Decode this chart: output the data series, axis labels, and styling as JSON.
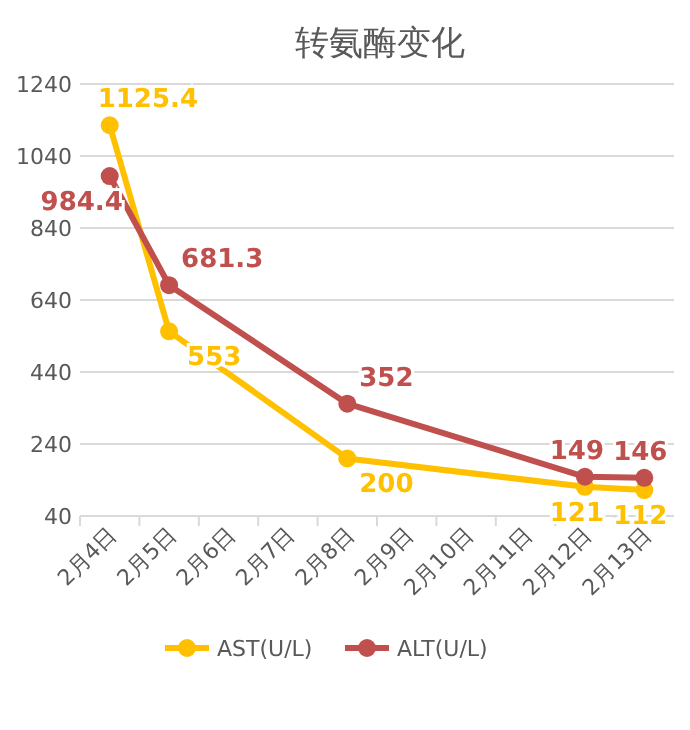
{
  "chart_data": {
    "type": "line",
    "title": "转氨酶变化",
    "categories": [
      "2月4日",
      "2月5日",
      "2月6日",
      "2月7日",
      "2月8日",
      "2月9日",
      "2月10日",
      "2月11日",
      "2月12日",
      "2月13日"
    ],
    "series": [
      {
        "name": "AST(U/L)",
        "color": "#ffc000",
        "values": [
          1125.4,
          553,
          null,
          null,
          200,
          null,
          null,
          null,
          121,
          112
        ]
      },
      {
        "name": "ALT(U/L)",
        "color": "#c0504d",
        "values": [
          984.4,
          681.3,
          null,
          null,
          352,
          null,
          null,
          null,
          149,
          146
        ]
      }
    ],
    "ylim": [
      40,
      1240
    ],
    "yticks": [
      40,
      240,
      440,
      640,
      840,
      1040,
      1240
    ],
    "grid": "y",
    "legend": "bottom",
    "marker": "circle",
    "data_labels": true
  }
}
